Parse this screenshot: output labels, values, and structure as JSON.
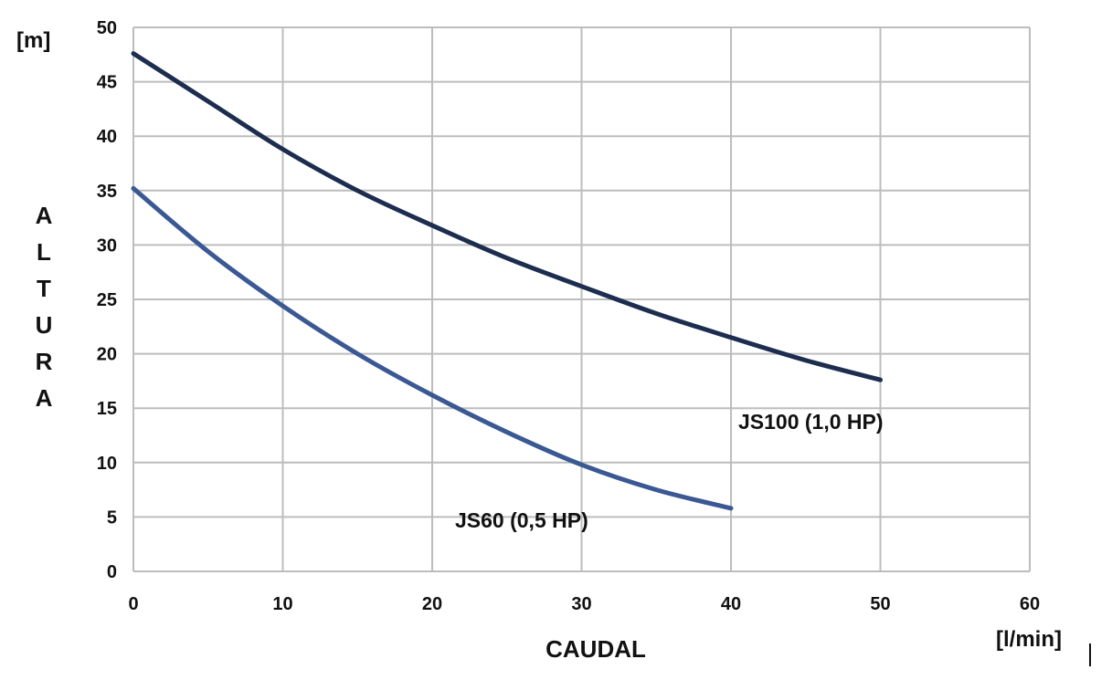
{
  "chart_data": {
    "type": "line",
    "title": "",
    "xlabel": "CAUDAL",
    "ylabel": "ALTURA",
    "xunit": "[l/min]",
    "yunit": "[m]",
    "xlim": [
      0,
      60
    ],
    "ylim": [
      0,
      50
    ],
    "xticks": [
      0,
      10,
      20,
      30,
      40,
      50,
      60
    ],
    "yticks": [
      0,
      5,
      10,
      15,
      20,
      25,
      30,
      35,
      40,
      45,
      50
    ],
    "grid": true,
    "series": [
      {
        "name": "JS100 (1,0 HP)",
        "color": "#1c2d4f",
        "x": [
          0,
          5,
          10,
          15,
          20,
          25,
          30,
          35,
          40,
          45,
          50
        ],
        "y": [
          47.6,
          43.2,
          38.8,
          35.0,
          31.8,
          28.8,
          26.2,
          23.7,
          21.5,
          19.4,
          17.6
        ]
      },
      {
        "name": "JS60 (0,5 HP)",
        "color": "#3a5894",
        "x": [
          0,
          5,
          10,
          15,
          20,
          25,
          30,
          35,
          40
        ],
        "y": [
          35.2,
          29.4,
          24.4,
          20.0,
          16.2,
          12.8,
          9.8,
          7.5,
          5.8
        ]
      }
    ]
  }
}
